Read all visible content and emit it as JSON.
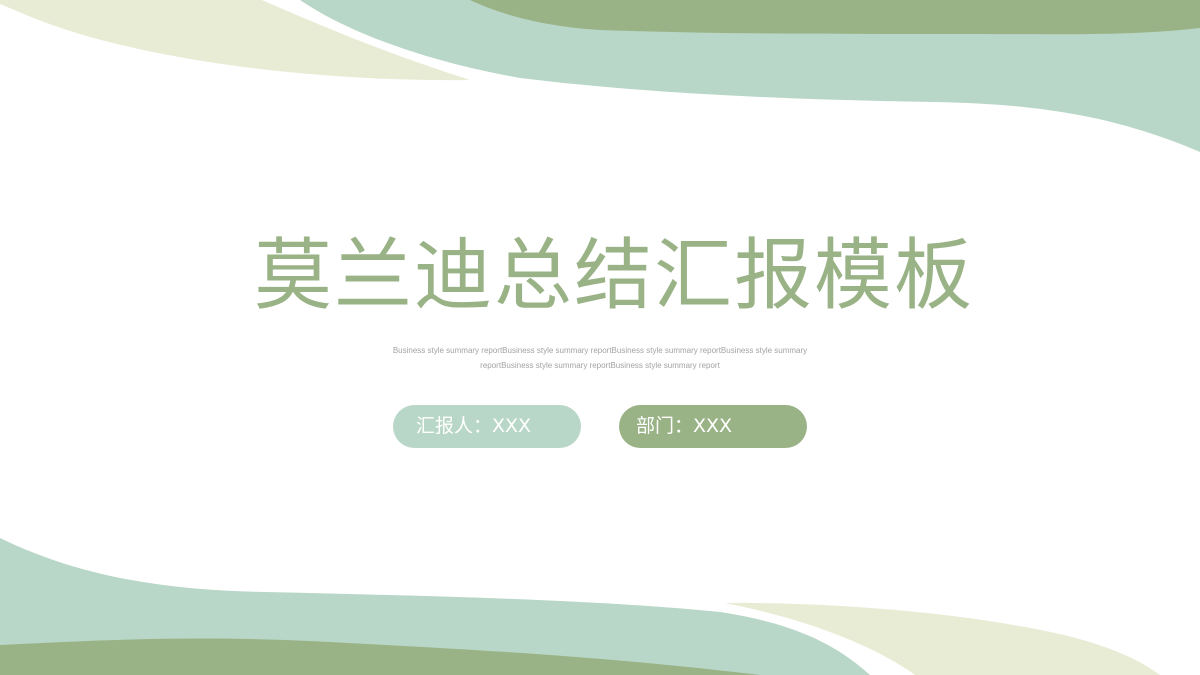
{
  "slide": {
    "title": "莫兰迪总结汇报模板",
    "subtitle": "Business style summary reportBusiness style summary reportBusiness style summary reportBusiness style summary reportBusiness style summary reportBusiness style summary report",
    "reporter_label": "汇报人：XXX",
    "department_label": "部门：XXX"
  },
  "colors": {
    "olive_green": "#9ab386",
    "mint_green": "#b9d7c8",
    "cream": "#e8ecd4",
    "subtitle_gray": "#a3a3a3",
    "background": "#ffffff"
  }
}
